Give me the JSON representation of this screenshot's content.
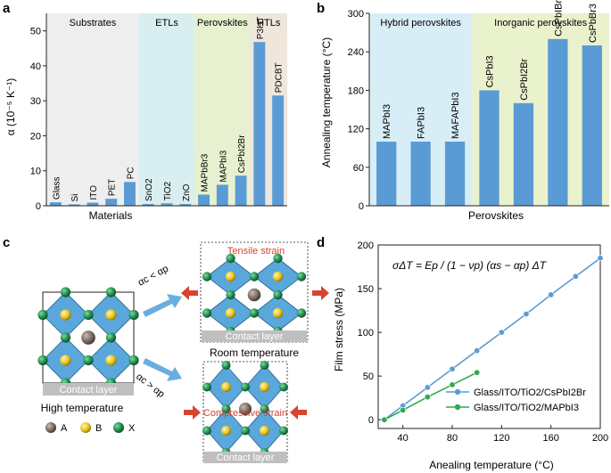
{
  "panel_labels": {
    "a": "a",
    "b": "b",
    "c": "c",
    "d": "d"
  },
  "chart_data": [
    {
      "id": "a",
      "type": "bar",
      "categories": [
        "Glass",
        "Si",
        "ITO",
        "PET",
        "PC",
        "SnO2",
        "TiO2",
        "ZnO",
        "MAPbBr3",
        "MAPbI3",
        "CsPbI2Br",
        "P3HT",
        "PDCBT"
      ],
      "values": [
        1.0,
        0.4,
        0.9,
        2.0,
        6.8,
        0.5,
        0.7,
        0.5,
        3.2,
        6.0,
        8.6,
        46.8,
        31.5
      ],
      "title": "",
      "xlabel": "Materials",
      "ylabel": "α (10⁻⁵ K⁻¹)",
      "ylim": [
        0,
        55
      ],
      "yticks": [
        0,
        10,
        20,
        30,
        40,
        50
      ],
      "groups": [
        {
          "name": "Substrates",
          "color": "#eeeeee",
          "members": [
            "Glass",
            "Si",
            "ITO",
            "PET",
            "PC"
          ]
        },
        {
          "name": "ETLs",
          "color": "#d8eef1",
          "members": [
            "SnO2",
            "TiO2",
            "ZnO"
          ]
        },
        {
          "name": "Perovskites",
          "color": "#e7f0cf",
          "members": [
            "MAPbBr3",
            "MAPbI3",
            "CsPbI2Br"
          ]
        },
        {
          "name": "HTLs",
          "color": "#efe6dc",
          "members": [
            "P3HT",
            "PDCBT"
          ]
        }
      ],
      "bar_color": "#5b9bd5"
    },
    {
      "id": "b",
      "type": "bar",
      "categories": [
        "MAPbI3",
        "FAPbI3",
        "MAFAPbI3",
        "CsPbI3",
        "CsPbI2Br",
        "CsPbIBr2",
        "CsPbBr3"
      ],
      "values": [
        100,
        100,
        100,
        180,
        160,
        260,
        250
      ],
      "title": "",
      "xlabel": "Perovskites",
      "ylabel": "Annealing temperature (°C)",
      "ylim": [
        0,
        300
      ],
      "yticks": [
        0,
        60,
        120,
        180,
        240,
        300
      ],
      "groups": [
        {
          "name": "Hybrid perovskites",
          "color": "#d8eef7",
          "members": [
            "MAPbI3",
            "FAPbI3",
            "MAFAPbI3"
          ]
        },
        {
          "name": "Inorganic perovskites",
          "color": "#eaf2cd",
          "members": [
            "CsPbI3",
            "CsPbI2Br",
            "CsPbIBr2",
            "CsPbBr3"
          ]
        }
      ],
      "bar_color": "#5b9bd5"
    },
    {
      "id": "d",
      "type": "line",
      "title": "",
      "xlabel": "Anealing temperature (°C)",
      "ylabel": "Film stress (MPa)",
      "xlim": [
        20,
        200
      ],
      "ylim": [
        -10,
        200
      ],
      "xticks": [
        40,
        80,
        120,
        160,
        200
      ],
      "yticks": [
        0,
        50,
        100,
        150,
        200
      ],
      "equation": "σΔT = Ep / (1 − νp) (αs − αp) ΔT",
      "series": [
        {
          "name": "Glass/ITO/TiO2/CsPbI2Br",
          "color": "#5b9bd5",
          "x": [
            25,
            40,
            60,
            80,
            100,
            120,
            140,
            160,
            180,
            200
          ],
          "y": [
            0,
            16,
            37,
            58,
            79,
            100,
            121,
            143,
            164,
            185
          ]
        },
        {
          "name": "Glass/ITO/TiO2/MAPbI3",
          "color": "#2eaa4f",
          "x": [
            25,
            40,
            60,
            80,
            100
          ],
          "y": [
            0,
            11,
            26,
            40,
            54
          ]
        }
      ]
    }
  ],
  "diagram_c": {
    "condition_top": "αc < αp",
    "condition_bottom": "αc > αp",
    "tensile_label": "Tensile strain",
    "compressive_label": "Compressive strain",
    "contact_layer": "Contact layer",
    "high_temperature": "High temperature",
    "room_temperature": "Room temperature",
    "legend": [
      {
        "label": "A",
        "color": "#7a6a60"
      },
      {
        "label": "B",
        "color": "#e8c31e"
      },
      {
        "label": "X",
        "color": "#1f8a4c"
      }
    ],
    "colors": {
      "octahedron": "#5aa7dc",
      "arrow": "#6aaee0",
      "strain": "#d9432f",
      "contact": "#bfbfbf"
    }
  }
}
